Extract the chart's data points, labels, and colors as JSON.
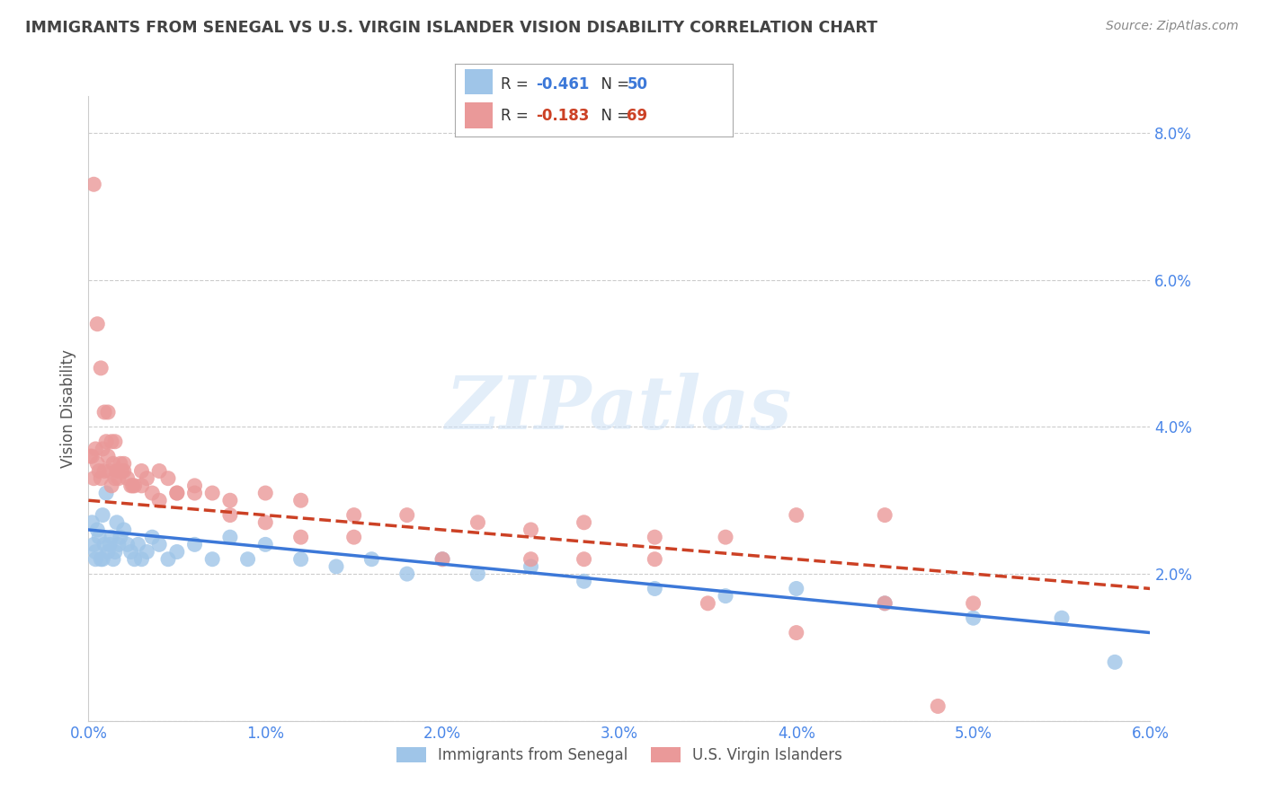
{
  "title": "IMMIGRANTS FROM SENEGAL VS U.S. VIRGIN ISLANDER VISION DISABILITY CORRELATION CHART",
  "source": "Source: ZipAtlas.com",
  "ylabel": "Vision Disability",
  "xlim": [
    0.0,
    0.06
  ],
  "ylim": [
    0.0,
    0.085
  ],
  "ytick_vals": [
    0.0,
    0.02,
    0.04,
    0.06,
    0.08
  ],
  "ytick_labels": [
    "",
    "2.0%",
    "4.0%",
    "6.0%",
    "8.0%"
  ],
  "xtick_vals": [
    0.0,
    0.01,
    0.02,
    0.03,
    0.04,
    0.05,
    0.06
  ],
  "xtick_labels": [
    "0.0%",
    "1.0%",
    "2.0%",
    "3.0%",
    "4.0%",
    "5.0%",
    "6.0%"
  ],
  "blue_color": "#9fc5e8",
  "pink_color": "#ea9999",
  "blue_line_color": "#3c78d8",
  "pink_line_color": "#cc4125",
  "legend_label_blue": "Immigrants from Senegal",
  "legend_label_pink": "U.S. Virgin Islanders",
  "watermark": "ZIPatlas",
  "title_color": "#434343",
  "axis_color": "#4a86e8",
  "grid_color": "#cccccc",
  "blue_scatter_x": [
    0.0002,
    0.0003,
    0.0004,
    0.0005,
    0.0006,
    0.0007,
    0.0008,
    0.0009,
    0.001,
    0.0011,
    0.0012,
    0.0013,
    0.0014,
    0.0015,
    0.0016,
    0.0017,
    0.0018,
    0.002,
    0.0022,
    0.0024,
    0.0026,
    0.0028,
    0.003,
    0.0033,
    0.0036,
    0.004,
    0.0045,
    0.005,
    0.006,
    0.007,
    0.008,
    0.009,
    0.01,
    0.012,
    0.014,
    0.016,
    0.018,
    0.02,
    0.022,
    0.025,
    0.028,
    0.032,
    0.036,
    0.04,
    0.045,
    0.05,
    0.055,
    0.058,
    0.0004,
    0.0008
  ],
  "blue_scatter_y": [
    0.027,
    0.024,
    0.022,
    0.026,
    0.025,
    0.022,
    0.028,
    0.024,
    0.031,
    0.023,
    0.024,
    0.025,
    0.022,
    0.023,
    0.027,
    0.024,
    0.025,
    0.026,
    0.024,
    0.023,
    0.022,
    0.024,
    0.022,
    0.023,
    0.025,
    0.024,
    0.022,
    0.023,
    0.024,
    0.022,
    0.025,
    0.022,
    0.024,
    0.022,
    0.021,
    0.022,
    0.02,
    0.022,
    0.02,
    0.021,
    0.019,
    0.018,
    0.017,
    0.018,
    0.016,
    0.014,
    0.014,
    0.008,
    0.023,
    0.022
  ],
  "pink_scatter_x": [
    0.0001,
    0.0002,
    0.0003,
    0.0004,
    0.0005,
    0.0006,
    0.0007,
    0.0008,
    0.0009,
    0.001,
    0.0011,
    0.0012,
    0.0013,
    0.0014,
    0.0015,
    0.0016,
    0.0017,
    0.0018,
    0.0019,
    0.002,
    0.0022,
    0.0024,
    0.0026,
    0.003,
    0.0033,
    0.0036,
    0.004,
    0.0045,
    0.005,
    0.006,
    0.007,
    0.008,
    0.01,
    0.012,
    0.015,
    0.018,
    0.022,
    0.025,
    0.028,
    0.032,
    0.036,
    0.04,
    0.045,
    0.05,
    0.0003,
    0.0005,
    0.0007,
    0.0009,
    0.0011,
    0.0013,
    0.0015,
    0.002,
    0.0025,
    0.003,
    0.004,
    0.005,
    0.006,
    0.008,
    0.01,
    0.012,
    0.015,
    0.02,
    0.025,
    0.035,
    0.04,
    0.045,
    0.048,
    0.032,
    0.028
  ],
  "pink_scatter_y": [
    0.036,
    0.036,
    0.033,
    0.037,
    0.035,
    0.034,
    0.033,
    0.037,
    0.034,
    0.038,
    0.036,
    0.034,
    0.032,
    0.035,
    0.033,
    0.034,
    0.033,
    0.035,
    0.034,
    0.035,
    0.033,
    0.032,
    0.032,
    0.034,
    0.033,
    0.031,
    0.034,
    0.033,
    0.031,
    0.032,
    0.031,
    0.03,
    0.031,
    0.03,
    0.028,
    0.028,
    0.027,
    0.026,
    0.027,
    0.025,
    0.025,
    0.028,
    0.028,
    0.016,
    0.073,
    0.054,
    0.048,
    0.042,
    0.042,
    0.038,
    0.038,
    0.034,
    0.032,
    0.032,
    0.03,
    0.031,
    0.031,
    0.028,
    0.027,
    0.025,
    0.025,
    0.022,
    0.022,
    0.016,
    0.012,
    0.016,
    0.002,
    0.022,
    0.022
  ]
}
